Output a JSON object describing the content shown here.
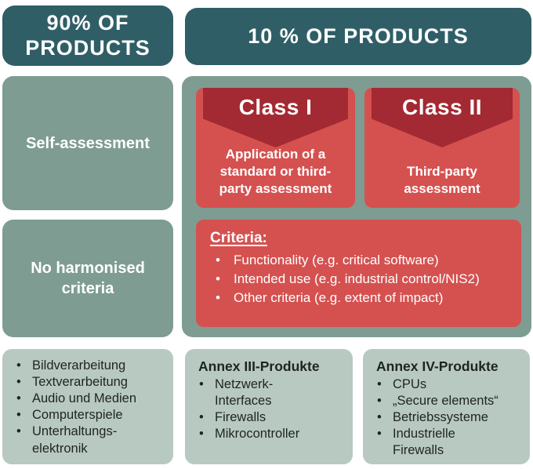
{
  "colors": {
    "teal": "#2F5E66",
    "sage": "#7E9C92",
    "light-sage": "#B8C9C2",
    "red": "#D45150",
    "dark-red": "#A32933",
    "text-dark": "#1E2423",
    "text-light": "#FFFFFF"
  },
  "headers": {
    "left": "90% OF\nPRODUCTS",
    "right": "10 % OF PRODUCTS"
  },
  "left_column": {
    "self_assessment": "Self-assessment",
    "no_harmonised_criteria": "No harmonised\ncriteria"
  },
  "classes": [
    {
      "title": "Class I",
      "subtitle": "Application of a\nstandard or third-\nparty assessment"
    },
    {
      "title": "Class II",
      "subtitle": "Third-party\nassessment"
    }
  ],
  "criteria": {
    "title": "Criteria:",
    "items": [
      "Functionality (e.g. critical software)",
      "Intended use (e.g. industrial control/NIS2)",
      "Other criteria (e.g. extent of impact)"
    ]
  },
  "bottom_boxes": [
    {
      "items": [
        "Bildverarbeitung",
        "Textverarbeitung",
        "Audio und Medien",
        "Computerspiele",
        "Unterhaltungs-\nelektronik"
      ]
    },
    {
      "title": "Annex III-Produkte",
      "items": [
        "Netzwerk-\nInterfaces",
        "Firewalls",
        "Mikrocontroller"
      ]
    },
    {
      "title": "Annex IV-Produkte",
      "items": [
        "CPUs",
        "„Secure elements“",
        "Betriebssysteme",
        "Industrielle\nFirewalls"
      ]
    }
  ]
}
